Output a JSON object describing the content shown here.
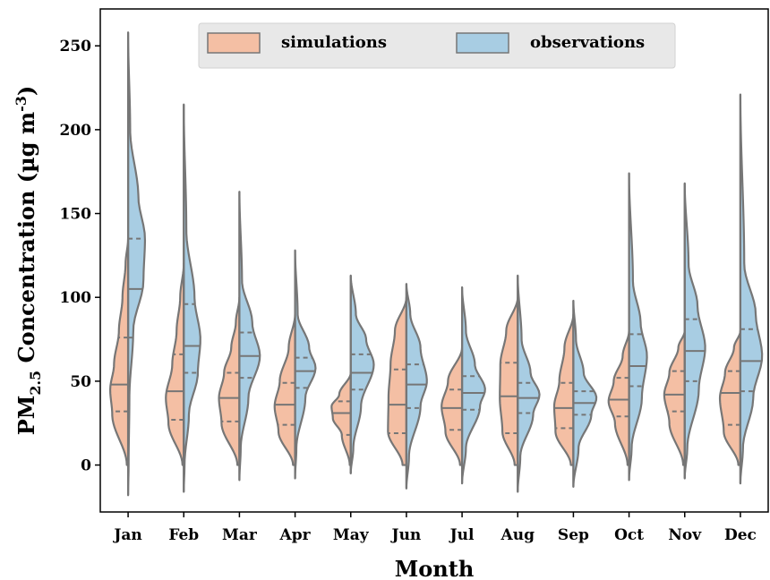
{
  "chart_data": {
    "type": "violin",
    "title": "",
    "xlabel": "Month",
    "ylabel_parts": {
      "base": "PM",
      "sub": "2.5",
      "rest": " Concentration (µg m",
      "sup": "-3",
      "close": ")"
    },
    "ylim": [
      -28,
      272
    ],
    "yticks": [
      0,
      50,
      100,
      150,
      200,
      250
    ],
    "ytick_labels": [
      "0",
      "50",
      "100",
      "150",
      "200",
      "250"
    ],
    "categories": [
      "Jan",
      "Feb",
      "Mar",
      "Apr",
      "May",
      "Jun",
      "Jul",
      "Aug",
      "Sep",
      "Oct",
      "Nov",
      "Dec"
    ],
    "grid": false,
    "legend_position": "top-center",
    "legend": [
      {
        "label": "simulations",
        "color": "#f4bfa4"
      },
      {
        "label": "observations",
        "color": "#a8cde3"
      }
    ],
    "colors": {
      "simulations": "#f4bfa4",
      "observations": "#a8cde3",
      "outline": "#767676",
      "legend_bg": "#e8e8e8"
    },
    "series": [
      {
        "name": "simulations",
        "violins": [
          {
            "min": 0,
            "max": 135,
            "q1": 32,
            "median": 48,
            "q3": 76,
            "profile": [
              [
                0,
                0.05
              ],
              [
                30,
                0.62
              ],
              [
                45,
                0.7
              ],
              [
                60,
                0.55
              ],
              [
                80,
                0.36
              ],
              [
                100,
                0.22
              ],
              [
                120,
                0.1
              ],
              [
                135,
                0.0
              ]
            ]
          },
          {
            "min": 0,
            "max": 120,
            "q1": 27,
            "median": 44,
            "q3": 66,
            "profile": [
              [
                0,
                0.05
              ],
              [
                25,
                0.6
              ],
              [
                40,
                0.7
              ],
              [
                60,
                0.45
              ],
              [
                80,
                0.28
              ],
              [
                100,
                0.14
              ],
              [
                120,
                0.0
              ]
            ]
          },
          {
            "min": 0,
            "max": 100,
            "q1": 26,
            "median": 40,
            "q3": 55,
            "profile": [
              [
                0,
                0.08
              ],
              [
                25,
                0.7
              ],
              [
                40,
                0.8
              ],
              [
                55,
                0.6
              ],
              [
                70,
                0.32
              ],
              [
                85,
                0.14
              ],
              [
                100,
                0.0
              ]
            ]
          },
          {
            "min": 0,
            "max": 90,
            "q1": 24,
            "median": 36,
            "q3": 49,
            "profile": [
              [
                0,
                0.08
              ],
              [
                20,
                0.65
              ],
              [
                35,
                0.8
              ],
              [
                50,
                0.6
              ],
              [
                70,
                0.25
              ],
              [
                90,
                0.0
              ]
            ]
          },
          {
            "min": 0,
            "max": 55,
            "q1": 18,
            "median": 31,
            "q3": 38,
            "profile": [
              [
                0,
                0.04
              ],
              [
                18,
                0.35
              ],
              [
                28,
                0.7
              ],
              [
                35,
                0.75
              ],
              [
                42,
                0.45
              ],
              [
                55,
                0.0
              ]
            ]
          },
          {
            "min": 0,
            "max": 100,
            "q1": 19,
            "median": 36,
            "q3": 57,
            "profile": [
              [
                0,
                0.15
              ],
              [
                20,
                0.72
              ],
              [
                40,
                0.7
              ],
              [
                60,
                0.62
              ],
              [
                80,
                0.45
              ],
              [
                100,
                0.0
              ]
            ]
          },
          {
            "min": 0,
            "max": 70,
            "q1": 21,
            "median": 34,
            "q3": 45,
            "profile": [
              [
                0,
                0.08
              ],
              [
                20,
                0.65
              ],
              [
                35,
                0.8
              ],
              [
                50,
                0.55
              ],
              [
                70,
                0.0
              ]
            ]
          },
          {
            "min": 0,
            "max": 100,
            "q1": 19,
            "median": 41,
            "q3": 61,
            "profile": [
              [
                0,
                0.12
              ],
              [
                20,
                0.6
              ],
              [
                40,
                0.7
              ],
              [
                60,
                0.68
              ],
              [
                80,
                0.45
              ],
              [
                100,
                0.0
              ]
            ]
          },
          {
            "min": 0,
            "max": 90,
            "q1": 22,
            "median": 34,
            "q3": 49,
            "profile": [
              [
                0,
                0.1
              ],
              [
                20,
                0.7
              ],
              [
                35,
                0.75
              ],
              [
                50,
                0.55
              ],
              [
                70,
                0.35
              ],
              [
                90,
                0.0
              ]
            ]
          },
          {
            "min": 0,
            "max": 80,
            "q1": 29,
            "median": 39,
            "q3": 52,
            "profile": [
              [
                0,
                0.06
              ],
              [
                25,
                0.55
              ],
              [
                38,
                0.8
              ],
              [
                50,
                0.6
              ],
              [
                65,
                0.25
              ],
              [
                80,
                0.0
              ]
            ]
          },
          {
            "min": 0,
            "max": 80,
            "q1": 32,
            "median": 42,
            "q3": 56,
            "profile": [
              [
                0,
                0.06
              ],
              [
                25,
                0.6
              ],
              [
                42,
                0.8
              ],
              [
                55,
                0.6
              ],
              [
                70,
                0.25
              ],
              [
                80,
                0.0
              ]
            ]
          },
          {
            "min": 0,
            "max": 80,
            "q1": 24,
            "median": 43,
            "q3": 56,
            "profile": [
              [
                0,
                0.08
              ],
              [
                20,
                0.65
              ],
              [
                40,
                0.8
              ],
              [
                55,
                0.6
              ],
              [
                70,
                0.25
              ],
              [
                80,
                0.0
              ]
            ]
          }
        ]
      },
      {
        "name": "observations",
        "violins": [
          {
            "min": -18,
            "max": 258,
            "q1": 76,
            "median": 105,
            "q3": 135,
            "profile": [
              [
                -18,
                0.0
              ],
              [
                0,
                0.02
              ],
              [
                40,
                0.05
              ],
              [
                80,
                0.2
              ],
              [
                110,
                0.6
              ],
              [
                135,
                0.66
              ],
              [
                160,
                0.4
              ],
              [
                200,
                0.08
              ],
              [
                258,
                0.0
              ]
            ]
          },
          {
            "min": -16,
            "max": 215,
            "q1": 55,
            "median": 71,
            "q3": 96,
            "profile": [
              [
                -16,
                0.0
              ],
              [
                0,
                0.03
              ],
              [
                30,
                0.2
              ],
              [
                55,
                0.55
              ],
              [
                75,
                0.65
              ],
              [
                100,
                0.42
              ],
              [
                140,
                0.1
              ],
              [
                215,
                0.0
              ]
            ]
          },
          {
            "min": -9,
            "max": 163,
            "q1": 52,
            "median": 65,
            "q3": 79,
            "profile": [
              [
                -9,
                0.0
              ],
              [
                10,
                0.05
              ],
              [
                40,
                0.35
              ],
              [
                65,
                0.8
              ],
              [
                85,
                0.5
              ],
              [
                110,
                0.1
              ],
              [
                163,
                0.0
              ]
            ]
          },
          {
            "min": -8,
            "max": 128,
            "q1": 46,
            "median": 56,
            "q3": 64,
            "profile": [
              [
                -8,
                0.0
              ],
              [
                10,
                0.05
              ],
              [
                40,
                0.4
              ],
              [
                58,
                0.8
              ],
              [
                70,
                0.55
              ],
              [
                90,
                0.1
              ],
              [
                128,
                0.0
              ]
            ]
          },
          {
            "min": -5,
            "max": 113,
            "q1": 45,
            "median": 55,
            "q3": 66,
            "profile": [
              [
                -5,
                0.0
              ],
              [
                10,
                0.1
              ],
              [
                35,
                0.4
              ],
              [
                60,
                0.9
              ],
              [
                75,
                0.6
              ],
              [
                90,
                0.2
              ],
              [
                113,
                0.0
              ]
            ]
          },
          {
            "min": -14,
            "max": 108,
            "q1": 34,
            "median": 48,
            "q3": 60,
            "profile": [
              [
                -14,
                0.0
              ],
              [
                5,
                0.1
              ],
              [
                35,
                0.55
              ],
              [
                50,
                0.8
              ],
              [
                70,
                0.55
              ],
              [
                90,
                0.15
              ],
              [
                108,
                0.0
              ]
            ]
          },
          {
            "min": -11,
            "max": 106,
            "q1": 33,
            "median": 43,
            "q3": 53,
            "profile": [
              [
                -11,
                0.0
              ],
              [
                10,
                0.15
              ],
              [
                35,
                0.7
              ],
              [
                45,
                0.9
              ],
              [
                60,
                0.5
              ],
              [
                80,
                0.15
              ],
              [
                106,
                0.0
              ]
            ]
          },
          {
            "min": -16,
            "max": 113,
            "q1": 31,
            "median": 40,
            "q3": 49,
            "profile": [
              [
                -16,
                0.0
              ],
              [
                5,
                0.1
              ],
              [
                30,
                0.6
              ],
              [
                42,
                0.85
              ],
              [
                55,
                0.5
              ],
              [
                75,
                0.15
              ],
              [
                113,
                0.0
              ]
            ]
          },
          {
            "min": -13,
            "max": 98,
            "q1": 30,
            "median": 37,
            "q3": 44,
            "profile": [
              [
                -13,
                0.0
              ],
              [
                10,
                0.2
              ],
              [
                30,
                0.7
              ],
              [
                40,
                0.9
              ],
              [
                55,
                0.4
              ],
              [
                75,
                0.1
              ],
              [
                98,
                0.0
              ]
            ]
          },
          {
            "min": -9,
            "max": 174,
            "q1": 47,
            "median": 59,
            "q3": 78,
            "profile": [
              [
                -9,
                0.0
              ],
              [
                10,
                0.1
              ],
              [
                40,
                0.5
              ],
              [
                65,
                0.7
              ],
              [
                85,
                0.45
              ],
              [
                110,
                0.15
              ],
              [
                174,
                0.0
              ]
            ]
          },
          {
            "min": -8,
            "max": 168,
            "q1": 50,
            "median": 68,
            "q3": 87,
            "profile": [
              [
                -8,
                0.0
              ],
              [
                10,
                0.1
              ],
              [
                45,
                0.55
              ],
              [
                70,
                0.8
              ],
              [
                95,
                0.5
              ],
              [
                120,
                0.15
              ],
              [
                168,
                0.0
              ]
            ]
          },
          {
            "min": -11,
            "max": 221,
            "q1": 44,
            "median": 62,
            "q3": 81,
            "profile": [
              [
                -11,
                0.0
              ],
              [
                10,
                0.1
              ],
              [
                40,
                0.5
              ],
              [
                65,
                0.85
              ],
              [
                90,
                0.6
              ],
              [
                120,
                0.15
              ],
              [
                221,
                0.0
              ]
            ]
          }
        ]
      }
    ]
  }
}
